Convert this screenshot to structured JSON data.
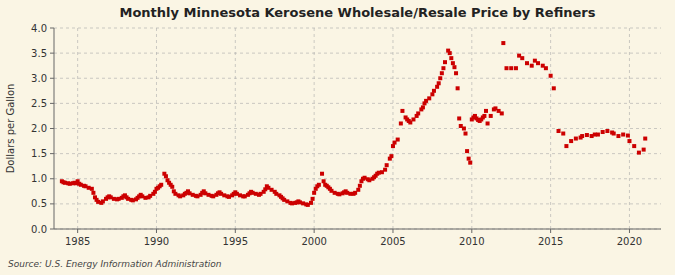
{
  "chart_data": {
    "type": "scatter",
    "title": "Monthly Minnesota Kerosene Wholesale/Resale Price by Refiners",
    "ylabel": "Dollars per Gallon",
    "annotations": [
      "Source: U.S. Energy Information Administration"
    ],
    "color": "#CC0000",
    "marker": "square",
    "grid": true,
    "xlim": [
      1983.5,
      2022
    ],
    "ylim": [
      0.0,
      4.0
    ],
    "xticks": [
      1985,
      1990,
      1995,
      2000,
      2005,
      2010,
      2015,
      2020
    ],
    "yticks": [
      {
        "value": 0.0,
        "label": "0.0"
      },
      0.5,
      {
        "value": 1.0,
        "label": "1.0"
      },
      1.5,
      {
        "value": 2.0,
        "label": "2.0"
      },
      2.5,
      {
        "value": 3.0,
        "label": "3.0"
      },
      3.5,
      {
        "value": 4.0,
        "label": "4.0"
      }
    ],
    "x": [
      1984.0,
      1984.1,
      1984.2,
      1984.4,
      1984.5,
      1984.7,
      1984.8,
      1984.9,
      1985.0,
      1985.1,
      1985.2,
      1985.4,
      1985.5,
      1985.7,
      1985.9,
      1986.0,
      1986.1,
      1986.2,
      1986.3,
      1986.5,
      1986.6,
      1986.8,
      1986.9,
      1987.0,
      1987.1,
      1987.3,
      1987.5,
      1987.6,
      1987.8,
      1987.9,
      1988.0,
      1988.1,
      1988.2,
      1988.4,
      1988.5,
      1988.7,
      1988.8,
      1988.9,
      1989.0,
      1989.1,
      1989.3,
      1989.5,
      1989.6,
      1989.8,
      1989.9,
      1990.0,
      1990.1,
      1990.2,
      1990.3,
      1990.5,
      1990.6,
      1990.7,
      1990.8,
      1990.9,
      1991.0,
      1991.1,
      1991.2,
      1991.4,
      1991.5,
      1991.7,
      1991.8,
      1991.9,
      1992.0,
      1992.1,
      1992.3,
      1992.5,
      1992.6,
      1992.8,
      1992.9,
      1993.0,
      1993.1,
      1993.3,
      1993.5,
      1993.6,
      1993.8,
      1993.9,
      1994.0,
      1994.1,
      1994.3,
      1994.5,
      1994.6,
      1994.8,
      1994.9,
      1995.0,
      1995.1,
      1995.3,
      1995.5,
      1995.6,
      1995.8,
      1995.9,
      1996.0,
      1996.1,
      1996.3,
      1996.5,
      1996.6,
      1996.8,
      1996.9,
      1997.0,
      1997.1,
      1997.3,
      1997.5,
      1997.6,
      1997.8,
      1997.9,
      1998.0,
      1998.1,
      1998.3,
      1998.5,
      1998.6,
      1998.8,
      1998.9,
      1999.0,
      1999.1,
      1999.3,
      1999.5,
      1999.6,
      1999.8,
      1999.9,
      2000.0,
      2000.1,
      2000.2,
      2000.3,
      2000.5,
      2000.6,
      2000.7,
      2000.8,
      2000.9,
      2001.0,
      2001.1,
      2001.3,
      2001.5,
      2001.6,
      2001.8,
      2001.9,
      2002.0,
      2002.1,
      2002.3,
      2002.5,
      2002.6,
      2002.8,
      2002.9,
      2003.0,
      2003.1,
      2003.2,
      2003.4,
      2003.5,
      2003.7,
      2003.8,
      2003.9,
      2004.0,
      2004.1,
      2004.3,
      2004.5,
      2004.6,
      2004.8,
      2004.9,
      2005.0,
      2005.1,
      2005.3,
      2005.5,
      2005.6,
      2005.8,
      2005.9,
      2006.0,
      2006.1,
      2006.3,
      2006.5,
      2006.6,
      2006.8,
      2006.9,
      2007.0,
      2007.1,
      2007.3,
      2007.5,
      2007.6,
      2007.8,
      2007.9,
      2008.0,
      2008.1,
      2008.2,
      2008.3,
      2008.5,
      2008.6,
      2008.7,
      2008.8,
      2008.9,
      2009.0,
      2009.1,
      2009.2,
      2009.3,
      2009.5,
      2009.6,
      2009.7,
      2009.8,
      2009.9,
      2010.0,
      2010.1,
      2010.2,
      2010.3,
      2010.4,
      2010.5,
      2010.6,
      2010.7,
      2010.8,
      2010.9,
      2011.0,
      2011.2,
      2011.4,
      2011.5,
      2011.7,
      2011.9,
      2012.0,
      2012.2,
      2012.5,
      2012.8,
      2013.0,
      2013.2,
      2013.5,
      2013.8,
      2014.0,
      2014.2,
      2014.5,
      2014.7,
      2015.0,
      2015.2,
      2015.5,
      2015.8,
      2016.0,
      2016.3,
      2016.6,
      2016.9,
      2017.0,
      2017.3,
      2017.6,
      2017.8,
      2018.0,
      2018.3,
      2018.6,
      2018.9,
      2019.0,
      2019.3,
      2019.6,
      2019.9,
      2020.0,
      2020.3,
      2020.6,
      2020.9,
      2021.0
    ],
    "values": [
      0.95,
      0.93,
      0.92,
      0.91,
      0.9,
      0.91,
      0.92,
      0.91,
      0.95,
      0.9,
      0.88,
      0.86,
      0.85,
      0.82,
      0.8,
      0.72,
      0.63,
      0.58,
      0.54,
      0.52,
      0.55,
      0.6,
      0.63,
      0.65,
      0.63,
      0.6,
      0.59,
      0.6,
      0.62,
      0.65,
      0.67,
      0.63,
      0.6,
      0.58,
      0.57,
      0.59,
      0.62,
      0.65,
      0.68,
      0.65,
      0.62,
      0.63,
      0.66,
      0.7,
      0.74,
      0.8,
      0.82,
      0.85,
      0.88,
      1.1,
      1.05,
      0.97,
      0.92,
      0.88,
      0.84,
      0.75,
      0.7,
      0.67,
      0.65,
      0.67,
      0.7,
      0.72,
      0.75,
      0.71,
      0.68,
      0.66,
      0.65,
      0.68,
      0.72,
      0.75,
      0.71,
      0.68,
      0.66,
      0.65,
      0.68,
      0.71,
      0.73,
      0.7,
      0.67,
      0.65,
      0.64,
      0.67,
      0.7,
      0.73,
      0.7,
      0.67,
      0.65,
      0.65,
      0.68,
      0.71,
      0.74,
      0.72,
      0.7,
      0.68,
      0.7,
      0.74,
      0.79,
      0.85,
      0.82,
      0.78,
      0.74,
      0.7,
      0.67,
      0.64,
      0.61,
      0.58,
      0.55,
      0.52,
      0.51,
      0.52,
      0.53,
      0.55,
      0.53,
      0.51,
      0.49,
      0.48,
      0.52,
      0.6,
      0.72,
      0.8,
      0.85,
      0.88,
      1.1,
      0.95,
      0.88,
      0.86,
      0.83,
      0.8,
      0.76,
      0.72,
      0.7,
      0.69,
      0.71,
      0.73,
      0.75,
      0.72,
      0.7,
      0.7,
      0.72,
      0.78,
      0.86,
      0.95,
      1.0,
      1.02,
      0.99,
      0.97,
      1.0,
      1.03,
      1.06,
      1.1,
      1.12,
      1.13,
      1.18,
      1.27,
      1.4,
      1.45,
      1.65,
      1.72,
      1.78,
      2.1,
      2.35,
      2.22,
      2.18,
      2.15,
      2.12,
      2.18,
      2.25,
      2.3,
      2.38,
      2.42,
      2.5,
      2.55,
      2.6,
      2.68,
      2.75,
      2.83,
      2.9,
      3.0,
      3.1,
      3.2,
      3.32,
      3.55,
      3.5,
      3.4,
      3.3,
      3.22,
      3.1,
      2.8,
      2.2,
      2.05,
      2.0,
      1.9,
      1.55,
      1.4,
      1.32,
      2.18,
      2.22,
      2.25,
      2.2,
      2.17,
      2.15,
      2.18,
      2.22,
      2.25,
      2.35,
      2.1,
      2.25,
      2.38,
      2.4,
      2.35,
      2.3,
      3.7,
      3.2,
      3.2,
      3.2,
      3.45,
      3.4,
      3.3,
      3.25,
      3.35,
      3.3,
      3.25,
      3.2,
      3.05,
      2.8,
      1.95,
      1.9,
      1.65,
      1.75,
      1.8,
      1.82,
      1.85,
      1.87,
      1.85,
      1.88,
      1.88,
      1.93,
      1.95,
      1.92,
      1.9,
      1.85,
      1.88,
      1.86,
      1.75,
      1.65,
      1.52,
      1.58,
      1.8
    ]
  }
}
